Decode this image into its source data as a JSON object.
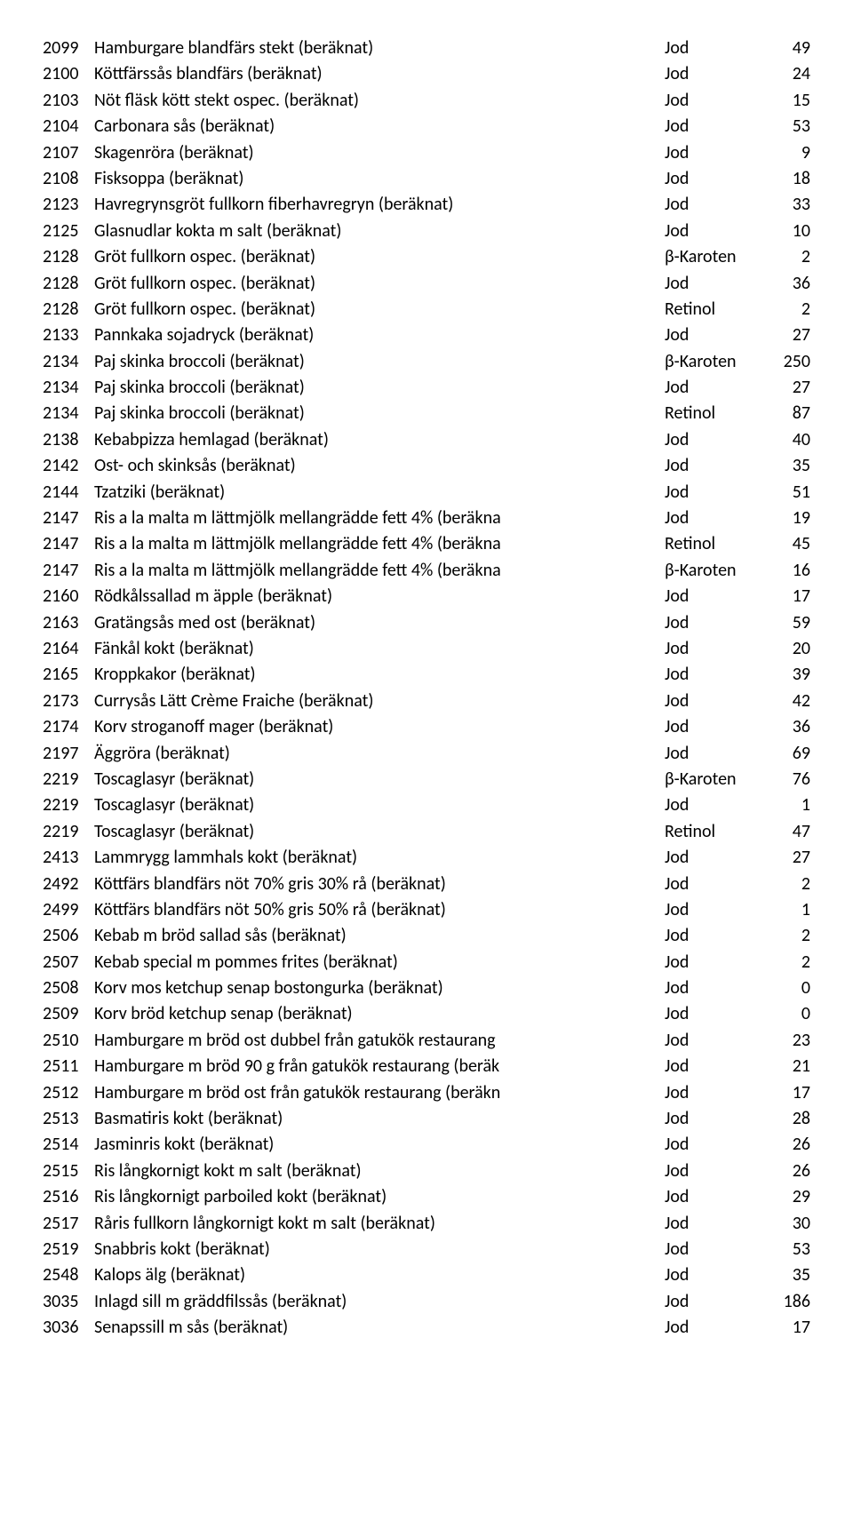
{
  "rows": [
    {
      "code": "2099",
      "name": "Hamburgare blandfärs stekt (beräknat)",
      "nutrient": "Jod",
      "value": "49"
    },
    {
      "code": "2100",
      "name": "Köttfärssås blandfärs (beräknat)",
      "nutrient": "Jod",
      "value": "24"
    },
    {
      "code": "2103",
      "name": "Nöt fläsk kött stekt ospec. (beräknat)",
      "nutrient": "Jod",
      "value": "15"
    },
    {
      "code": "2104",
      "name": "Carbonara sås (beräknat)",
      "nutrient": "Jod",
      "value": "53"
    },
    {
      "code": "2107",
      "name": "Skagenröra (beräknat)",
      "nutrient": "Jod",
      "value": "9"
    },
    {
      "code": "2108",
      "name": "Fisksoppa (beräknat)",
      "nutrient": "Jod",
      "value": "18"
    },
    {
      "code": "2123",
      "name": "Havregrynsgröt fullkorn fiberhavregryn (beräknat)",
      "nutrient": "Jod",
      "value": "33"
    },
    {
      "code": "2125",
      "name": "Glasnudlar kokta m salt (beräknat)",
      "nutrient": "Jod",
      "value": "10"
    },
    {
      "code": "2128",
      "name": "Gröt fullkorn ospec. (beräknat)",
      "nutrient": "β-Karoten",
      "value": "2"
    },
    {
      "code": "2128",
      "name": "Gröt fullkorn ospec. (beräknat)",
      "nutrient": "Jod",
      "value": "36"
    },
    {
      "code": "2128",
      "name": "Gröt fullkorn ospec. (beräknat)",
      "nutrient": "Retinol",
      "value": "2"
    },
    {
      "code": "2133",
      "name": "Pannkaka sojadryck (beräknat)",
      "nutrient": "Jod",
      "value": "27"
    },
    {
      "code": "2134",
      "name": "Paj skinka broccoli (beräknat)",
      "nutrient": "β-Karoten",
      "value": "250"
    },
    {
      "code": "2134",
      "name": "Paj skinka broccoli (beräknat)",
      "nutrient": "Jod",
      "value": "27"
    },
    {
      "code": "2134",
      "name": "Paj skinka broccoli (beräknat)",
      "nutrient": "Retinol",
      "value": "87"
    },
    {
      "code": "2138",
      "name": "Kebabpizza hemlagad (beräknat)",
      "nutrient": "Jod",
      "value": "40"
    },
    {
      "code": "2142",
      "name": "Ost- och skinksås (beräknat)",
      "nutrient": "Jod",
      "value": "35"
    },
    {
      "code": "2144",
      "name": "Tzatziki (beräknat)",
      "nutrient": "Jod",
      "value": "51"
    },
    {
      "code": "2147",
      "name": "Ris a la malta m lättmjölk mellangrädde fett 4% (beräkna",
      "nutrient": "Jod",
      "value": "19"
    },
    {
      "code": "2147",
      "name": "Ris a la malta m lättmjölk mellangrädde fett 4% (beräkna",
      "nutrient": "Retinol",
      "value": "45"
    },
    {
      "code": "2147",
      "name": "Ris a la malta m lättmjölk mellangrädde fett 4% (beräkna",
      "nutrient": "β-Karoten",
      "value": "16"
    },
    {
      "code": "2160",
      "name": "Rödkålssallad m äpple (beräknat)",
      "nutrient": "Jod",
      "value": "17"
    },
    {
      "code": "2163",
      "name": "Gratängsås med ost (beräknat)",
      "nutrient": "Jod",
      "value": "59"
    },
    {
      "code": "2164",
      "name": "Fänkål kokt (beräknat)",
      "nutrient": "Jod",
      "value": "20"
    },
    {
      "code": "2165",
      "name": "Kroppkakor (beräknat)",
      "nutrient": "Jod",
      "value": "39"
    },
    {
      "code": "2173",
      "name": "Currysås Lätt Crème Fraiche (beräknat)",
      "nutrient": "Jod",
      "value": "42"
    },
    {
      "code": "2174",
      "name": "Korv stroganoff mager (beräknat)",
      "nutrient": "Jod",
      "value": "36"
    },
    {
      "code": "2197",
      "name": "Äggröra (beräknat)",
      "nutrient": "Jod",
      "value": "69"
    },
    {
      "code": "2219",
      "name": "Toscaglasyr (beräknat)",
      "nutrient": "β-Karoten",
      "value": "76"
    },
    {
      "code": "2219",
      "name": "Toscaglasyr (beräknat)",
      "nutrient": "Jod",
      "value": "1"
    },
    {
      "code": "2219",
      "name": "Toscaglasyr (beräknat)",
      "nutrient": "Retinol",
      "value": "47"
    },
    {
      "code": "2413",
      "name": "Lammrygg lammhals kokt (beräknat)",
      "nutrient": "Jod",
      "value": "27"
    },
    {
      "code": "2492",
      "name": "Köttfärs blandfärs nöt 70% gris 30% rå (beräknat)",
      "nutrient": "Jod",
      "value": "2"
    },
    {
      "code": "2499",
      "name": "Köttfärs blandfärs nöt 50% gris 50% rå (beräknat)",
      "nutrient": "Jod",
      "value": "1"
    },
    {
      "code": "2506",
      "name": "Kebab m bröd sallad sås (beräknat)",
      "nutrient": "Jod",
      "value": "2"
    },
    {
      "code": "2507",
      "name": "Kebab special m pommes frites (beräknat)",
      "nutrient": "Jod",
      "value": "2"
    },
    {
      "code": "2508",
      "name": "Korv mos ketchup senap bostongurka (beräknat)",
      "nutrient": "Jod",
      "value": "0"
    },
    {
      "code": "2509",
      "name": "Korv bröd ketchup senap (beräknat)",
      "nutrient": "Jod",
      "value": "0"
    },
    {
      "code": "2510",
      "name": "Hamburgare m bröd ost dubbel från gatukök restaurang",
      "nutrient": "Jod",
      "value": "23"
    },
    {
      "code": "2511",
      "name": "Hamburgare m bröd 90 g från gatukök restaurang (beräk",
      "nutrient": "Jod",
      "value": "21"
    },
    {
      "code": "2512",
      "name": "Hamburgare m bröd ost från gatukök restaurang (beräkn",
      "nutrient": "Jod",
      "value": "17"
    },
    {
      "code": "2513",
      "name": "Basmatiris kokt (beräknat)",
      "nutrient": "Jod",
      "value": "28"
    },
    {
      "code": "2514",
      "name": "Jasminris kokt (beräknat)",
      "nutrient": "Jod",
      "value": "26"
    },
    {
      "code": "2515",
      "name": "Ris långkornigt kokt m salt (beräknat)",
      "nutrient": "Jod",
      "value": "26"
    },
    {
      "code": "2516",
      "name": "Ris långkornigt parboiled kokt (beräknat)",
      "nutrient": "Jod",
      "value": "29"
    },
    {
      "code": "2517",
      "name": "Råris fullkorn långkornigt kokt m salt (beräknat)",
      "nutrient": "Jod",
      "value": "30"
    },
    {
      "code": "2519",
      "name": "Snabbris kokt (beräknat)",
      "nutrient": "Jod",
      "value": "53"
    },
    {
      "code": "2548",
      "name": "Kalops älg (beräknat)",
      "nutrient": "Jod",
      "value": "35"
    },
    {
      "code": "3035",
      "name": "Inlagd sill m gräddfilssås (beräknat)",
      "nutrient": "Jod",
      "value": "186"
    },
    {
      "code": "3036",
      "name": "Senapssill m sås (beräknat)",
      "nutrient": "Jod",
      "value": "17"
    }
  ]
}
